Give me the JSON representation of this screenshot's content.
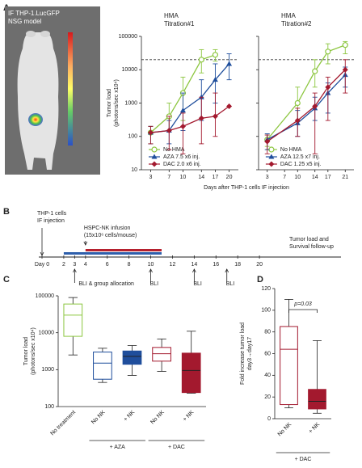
{
  "panels": [
    "A",
    "B",
    "C",
    "D"
  ],
  "image_panel": {
    "caption": [
      "IF THP-1.LucGFP",
      "NSG model"
    ]
  },
  "chart_data": [
    {
      "type": "line",
      "title": [
        "HMA",
        "Titration#1"
      ],
      "ylabel": [
        "Tumor load",
        "(photons/sec x10⁴)"
      ],
      "xlabel": "Days after THP-1 cells IF injection",
      "x": [
        3,
        7,
        10,
        14,
        17,
        20
      ],
      "xlim": [
        1,
        22
      ],
      "xticks": [
        3,
        7,
        10,
        14,
        17,
        20
      ],
      "ylim": [
        10,
        100000
      ],
      "yticks": [
        10,
        100,
        1000,
        10000,
        100000
      ],
      "log_y": true,
      "ytick_labels": true,
      "hline": 20000,
      "legend": "lower right",
      "series": [
        {
          "name": "No HMA",
          "color": "#8cc63f",
          "marker": "open-circle",
          "values": [
            130,
            400,
            2000,
            20000,
            28000,
            null
          ],
          "err_low": [
            60,
            150,
            300,
            8000,
            18000,
            null
          ],
          "err_high": [
            200,
            1000,
            6000,
            40000,
            40000,
            null
          ]
        },
        {
          "name": "AZA 7.5 x6 inj.",
          "color": "#1f4e9c",
          "marker": "triangle",
          "values": [
            130,
            150,
            600,
            1500,
            5000,
            15000
          ],
          "err_low": [
            60,
            60,
            150,
            300,
            1000,
            5000
          ],
          "err_high": [
            200,
            300,
            2000,
            5000,
            15000,
            30000
          ]
        },
        {
          "name": "DAC 2.0 x6 inj.",
          "color": "#a3192e",
          "marker": "diamond",
          "values": [
            130,
            150,
            200,
            350,
            400,
            800
          ],
          "err_low": [
            60,
            40,
            30,
            60,
            100,
            null
          ],
          "err_high": [
            200,
            400,
            500,
            1500,
            2000,
            null
          ]
        }
      ]
    },
    {
      "type": "line",
      "title": [
        "HMA",
        "Titration#2"
      ],
      "x": [
        3,
        10,
        14,
        17,
        21
      ],
      "xlim": [
        1,
        23
      ],
      "xticks": [
        3,
        7,
        10,
        14,
        17,
        21
      ],
      "ylim": [
        10,
        100000
      ],
      "yticks": [
        10,
        100,
        1000,
        10000,
        100000
      ],
      "log_y": true,
      "ytick_labels": false,
      "hline": 20000,
      "legend": "lower right",
      "series": [
        {
          "name": "No HMA",
          "color": "#8cc63f",
          "marker": "open-circle",
          "values": [
            80,
            1000,
            9000,
            35000,
            55000
          ],
          "err_low": [
            50,
            300,
            3000,
            15000,
            30000
          ],
          "err_high": [
            110,
            3000,
            20000,
            60000,
            70000
          ]
        },
        {
          "name": "AZA 12.5 x7 inj.",
          "color": "#1f4e9c",
          "marker": "triangle",
          "values": [
            80,
            250,
            700,
            2000,
            7000
          ],
          "err_low": [
            40,
            100,
            300,
            500,
            3000
          ],
          "err_high": [
            120,
            600,
            1500,
            4000,
            12000
          ]
        },
        {
          "name": "DAC 1.25 x5 inj.",
          "color": "#a3192e",
          "marker": "diamond",
          "values": [
            70,
            300,
            800,
            3000,
            10000
          ],
          "err_low": [
            30,
            100,
            30,
            300,
            2000
          ],
          "err_high": [
            110,
            700,
            2000,
            6000,
            20000
          ]
        }
      ]
    },
    {
      "type": "timeline",
      "xlim": [
        0,
        27.5
      ],
      "xticks": [
        {
          "value": 0,
          "label": "Day 0"
        },
        2,
        3,
        4,
        6,
        8,
        10,
        12,
        14,
        16,
        18,
        20
      ],
      "bars": [
        {
          "color": "#2e5fac",
          "start": 2,
          "end": 11
        },
        {
          "color": "#b5202e",
          "start": 4,
          "end": 11
        }
      ],
      "events": [
        {
          "x": 0,
          "side": "above",
          "label": [
            "THP-1 cells",
            "IF injection"
          ]
        },
        {
          "x": 4,
          "side": "above",
          "label": [
            "HSPC-NK infusion",
            "(15x10⁶ cells/mouse)"
          ]
        },
        {
          "x": 3,
          "side": "below",
          "label": [
            "BLI & group allocation"
          ]
        },
        {
          "x": 10,
          "side": "below",
          "label": [
            "BLI"
          ]
        },
        {
          "x": 14,
          "side": "below",
          "label": [
            "BLI"
          ]
        },
        {
          "x": 17,
          "side": "below",
          "label": [
            "BLI"
          ]
        }
      ],
      "end_label": [
        "Tumor load and",
        "Survival follow-up"
      ]
    },
    {
      "type": "box",
      "ylabel": [
        "Tumor load",
        "(photons/sec x10⁴)"
      ],
      "categories": [
        "No treatment",
        "No NK",
        "+ NK",
        "No NK",
        "+ NK"
      ],
      "groups": [
        null,
        "+ AZA",
        "+ AZA",
        "+ DAC",
        "+ DAC"
      ],
      "colors": [
        "#8cc63f",
        "#1f4e9c",
        "#1f4e9c",
        "#a3192e",
        "#a3192e"
      ],
      "filled": [
        false,
        false,
        true,
        false,
        true
      ],
      "min": [
        2500,
        450,
        700,
        900,
        230
      ],
      "q1": [
        8000,
        550,
        1400,
        1700,
        240
      ],
      "median": [
        30000,
        1500,
        2300,
        2700,
        950
      ],
      "q3": [
        60000,
        3000,
        3200,
        4000,
        2800
      ],
      "max": [
        90000,
        3800,
        4500,
        6800,
        11000
      ],
      "ylim": [
        100,
        100000
      ],
      "yticks": [
        100,
        1000,
        10000,
        100000
      ],
      "log_y": true
    },
    {
      "type": "box",
      "ylabel": [
        "Fold increase tumor load",
        "day3→day17"
      ],
      "categories": [
        "No NK",
        "+ NK"
      ],
      "groups": [
        "+ DAC",
        "+ DAC"
      ],
      "colors": [
        "#a3192e",
        "#a3192e"
      ],
      "filled": [
        false,
        true
      ],
      "min": [
        10,
        5
      ],
      "q1": [
        13,
        9
      ],
      "median": [
        64,
        16
      ],
      "q3": [
        85,
        27
      ],
      "max": [
        110,
        72
      ],
      "ylim": [
        0,
        120
      ],
      "yticks": [
        0,
        20,
        40,
        60,
        80,
        100,
        120
      ],
      "log_y": false,
      "annotation": "p=0.03"
    }
  ]
}
